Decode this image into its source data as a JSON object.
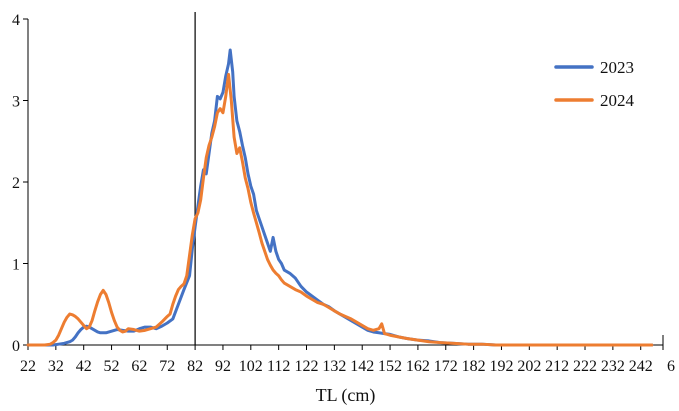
{
  "chart_data": {
    "type": "line",
    "title": "",
    "xlabel": "TL (cm)",
    "ylabel": "",
    "xlim": [
      22,
      250
    ],
    "ylim": [
      0,
      4
    ],
    "y_ticks": [
      0,
      1,
      2,
      3,
      4
    ],
    "x_ticks": [
      22,
      32,
      42,
      52,
      62,
      72,
      82,
      92,
      102,
      112,
      122,
      132,
      142,
      152,
      162,
      172,
      182,
      192,
      202,
      212,
      222,
      232,
      242
    ],
    "x_tick_labels": [
      "22",
      "32",
      "42",
      "52",
      "62",
      "72",
      "82",
      "92",
      "102",
      "112",
      "122",
      "132",
      "142",
      "152",
      "162",
      "172",
      "182",
      "192",
      "202",
      "212",
      "222",
      "232",
      "242"
    ],
    "x_tick_label_extra": "6",
    "reference_line_x": 82,
    "grid": false,
    "legend_position": "top-right",
    "colors": {
      "2023": "#4472C4",
      "2024": "#ED7D31",
      "axis": "#000000"
    },
    "series": [
      {
        "name": "2023",
        "points": [
          [
            22,
            0
          ],
          [
            25,
            0
          ],
          [
            28,
            0
          ],
          [
            31,
            0
          ],
          [
            33,
            0.01
          ],
          [
            35,
            0.02
          ],
          [
            37,
            0.04
          ],
          [
            38,
            0.06
          ],
          [
            39,
            0.1
          ],
          [
            40,
            0.15
          ],
          [
            41,
            0.19
          ],
          [
            42,
            0.22
          ],
          [
            43,
            0.23
          ],
          [
            44,
            0.22
          ],
          [
            45,
            0.2
          ],
          [
            46,
            0.18
          ],
          [
            47,
            0.16
          ],
          [
            48,
            0.15
          ],
          [
            50,
            0.15
          ],
          [
            52,
            0.17
          ],
          [
            54,
            0.19
          ],
          [
            56,
            0.18
          ],
          [
            58,
            0.17
          ],
          [
            60,
            0.17
          ],
          [
            62,
            0.2
          ],
          [
            64,
            0.22
          ],
          [
            66,
            0.22
          ],
          [
            68,
            0.2
          ],
          [
            70,
            0.23
          ],
          [
            72,
            0.27
          ],
          [
            74,
            0.32
          ],
          [
            76,
            0.5
          ],
          [
            78,
            0.68
          ],
          [
            80,
            0.85
          ],
          [
            81,
            1.18
          ],
          [
            82,
            1.45
          ],
          [
            83,
            1.7
          ],
          [
            84,
            1.95
          ],
          [
            85,
            2.15
          ],
          [
            86,
            2.1
          ],
          [
            87,
            2.35
          ],
          [
            88,
            2.6
          ],
          [
            89,
            2.75
          ],
          [
            90,
            3.05
          ],
          [
            91,
            3.02
          ],
          [
            92,
            3.1
          ],
          [
            93,
            3.3
          ],
          [
            94,
            3.45
          ],
          [
            94.6,
            3.62
          ],
          [
            95.5,
            3.35
          ],
          [
            96,
            3.05
          ],
          [
            97,
            2.75
          ],
          [
            98,
            2.62
          ],
          [
            99,
            2.45
          ],
          [
            100,
            2.3
          ],
          [
            101,
            2.1
          ],
          [
            102,
            1.95
          ],
          [
            103,
            1.85
          ],
          [
            104,
            1.65
          ],
          [
            105,
            1.55
          ],
          [
            106,
            1.45
          ],
          [
            107,
            1.35
          ],
          [
            108,
            1.25
          ],
          [
            109,
            1.15
          ],
          [
            110,
            1.32
          ],
          [
            111,
            1.15
          ],
          [
            112,
            1.05
          ],
          [
            113,
            1.0
          ],
          [
            114,
            0.92
          ],
          [
            116,
            0.88
          ],
          [
            118,
            0.82
          ],
          [
            120,
            0.72
          ],
          [
            122,
            0.65
          ],
          [
            124,
            0.6
          ],
          [
            126,
            0.55
          ],
          [
            128,
            0.5
          ],
          [
            130,
            0.47
          ],
          [
            132,
            0.42
          ],
          [
            134,
            0.38
          ],
          [
            136,
            0.34
          ],
          [
            138,
            0.3
          ],
          [
            140,
            0.26
          ],
          [
            142,
            0.22
          ],
          [
            144,
            0.18
          ],
          [
            146,
            0.16
          ],
          [
            148,
            0.15
          ],
          [
            150,
            0.14
          ],
          [
            152,
            0.13
          ],
          [
            155,
            0.1
          ],
          [
            158,
            0.08
          ],
          [
            162,
            0.06
          ],
          [
            166,
            0.05
          ],
          [
            170,
            0.03
          ],
          [
            175,
            0.02
          ],
          [
            180,
            0.01
          ],
          [
            185,
            0.01
          ],
          [
            190,
            0
          ],
          [
            200,
            0
          ],
          [
            210,
            0
          ],
          [
            220,
            0
          ],
          [
            230,
            0
          ],
          [
            240,
            0
          ],
          [
            246,
            0
          ]
        ]
      },
      {
        "name": "2024",
        "points": [
          [
            22,
            0
          ],
          [
            25,
            0
          ],
          [
            28,
            0
          ],
          [
            30,
            0.01
          ],
          [
            31,
            0.03
          ],
          [
            32,
            0.06
          ],
          [
            33,
            0.12
          ],
          [
            34,
            0.2
          ],
          [
            35,
            0.28
          ],
          [
            36,
            0.34
          ],
          [
            37,
            0.38
          ],
          [
            38,
            0.37
          ],
          [
            39,
            0.35
          ],
          [
            40,
            0.32
          ],
          [
            41,
            0.28
          ],
          [
            42,
            0.24
          ],
          [
            43,
            0.2
          ],
          [
            44,
            0.22
          ],
          [
            45,
            0.3
          ],
          [
            46,
            0.42
          ],
          [
            47,
            0.53
          ],
          [
            48,
            0.62
          ],
          [
            49,
            0.67
          ],
          [
            50,
            0.62
          ],
          [
            51,
            0.52
          ],
          [
            52,
            0.4
          ],
          [
            53,
            0.3
          ],
          [
            54,
            0.22
          ],
          [
            55,
            0.18
          ],
          [
            56,
            0.16
          ],
          [
            57,
            0.17
          ],
          [
            58,
            0.2
          ],
          [
            60,
            0.19
          ],
          [
            62,
            0.17
          ],
          [
            64,
            0.18
          ],
          [
            66,
            0.2
          ],
          [
            68,
            0.22
          ],
          [
            70,
            0.28
          ],
          [
            72,
            0.35
          ],
          [
            73,
            0.38
          ],
          [
            74,
            0.5
          ],
          [
            75,
            0.6
          ],
          [
            76,
            0.68
          ],
          [
            77,
            0.72
          ],
          [
            78,
            0.75
          ],
          [
            79,
            0.85
          ],
          [
            80,
            1.1
          ],
          [
            81,
            1.35
          ],
          [
            82,
            1.55
          ],
          [
            83,
            1.62
          ],
          [
            84,
            1.78
          ],
          [
            85,
            2.05
          ],
          [
            86,
            2.3
          ],
          [
            87,
            2.45
          ],
          [
            88,
            2.55
          ],
          [
            89,
            2.68
          ],
          [
            90,
            2.85
          ],
          [
            91,
            2.9
          ],
          [
            92,
            2.85
          ],
          [
            93,
            3.05
          ],
          [
            94,
            3.32
          ],
          [
            95,
            3.0
          ],
          [
            96,
            2.55
          ],
          [
            97,
            2.35
          ],
          [
            98,
            2.42
          ],
          [
            99,
            2.25
          ],
          [
            100,
            2.05
          ],
          [
            101,
            1.92
          ],
          [
            102,
            1.75
          ],
          [
            103,
            1.62
          ],
          [
            104,
            1.5
          ],
          [
            105,
            1.38
          ],
          [
            106,
            1.25
          ],
          [
            107,
            1.15
          ],
          [
            108,
            1.05
          ],
          [
            109,
            0.98
          ],
          [
            110,
            0.92
          ],
          [
            111,
            0.88
          ],
          [
            112,
            0.85
          ],
          [
            113,
            0.8
          ],
          [
            114,
            0.76
          ],
          [
            116,
            0.72
          ],
          [
            118,
            0.68
          ],
          [
            120,
            0.65
          ],
          [
            122,
            0.6
          ],
          [
            124,
            0.56
          ],
          [
            126,
            0.52
          ],
          [
            128,
            0.5
          ],
          [
            130,
            0.46
          ],
          [
            132,
            0.42
          ],
          [
            134,
            0.38
          ],
          [
            136,
            0.35
          ],
          [
            138,
            0.32
          ],
          [
            140,
            0.28
          ],
          [
            142,
            0.24
          ],
          [
            144,
            0.2
          ],
          [
            146,
            0.18
          ],
          [
            148,
            0.2
          ],
          [
            149,
            0.26
          ],
          [
            150,
            0.14
          ],
          [
            152,
            0.12
          ],
          [
            155,
            0.1
          ],
          [
            158,
            0.08
          ],
          [
            162,
            0.06
          ],
          [
            166,
            0.04
          ],
          [
            170,
            0.03
          ],
          [
            175,
            0.02
          ],
          [
            180,
            0.01
          ],
          [
            185,
            0.01
          ],
          [
            190,
            0
          ],
          [
            200,
            0
          ],
          [
            210,
            0
          ],
          [
            220,
            0
          ],
          [
            230,
            0
          ],
          [
            240,
            0
          ],
          [
            246,
            0
          ]
        ]
      }
    ]
  }
}
